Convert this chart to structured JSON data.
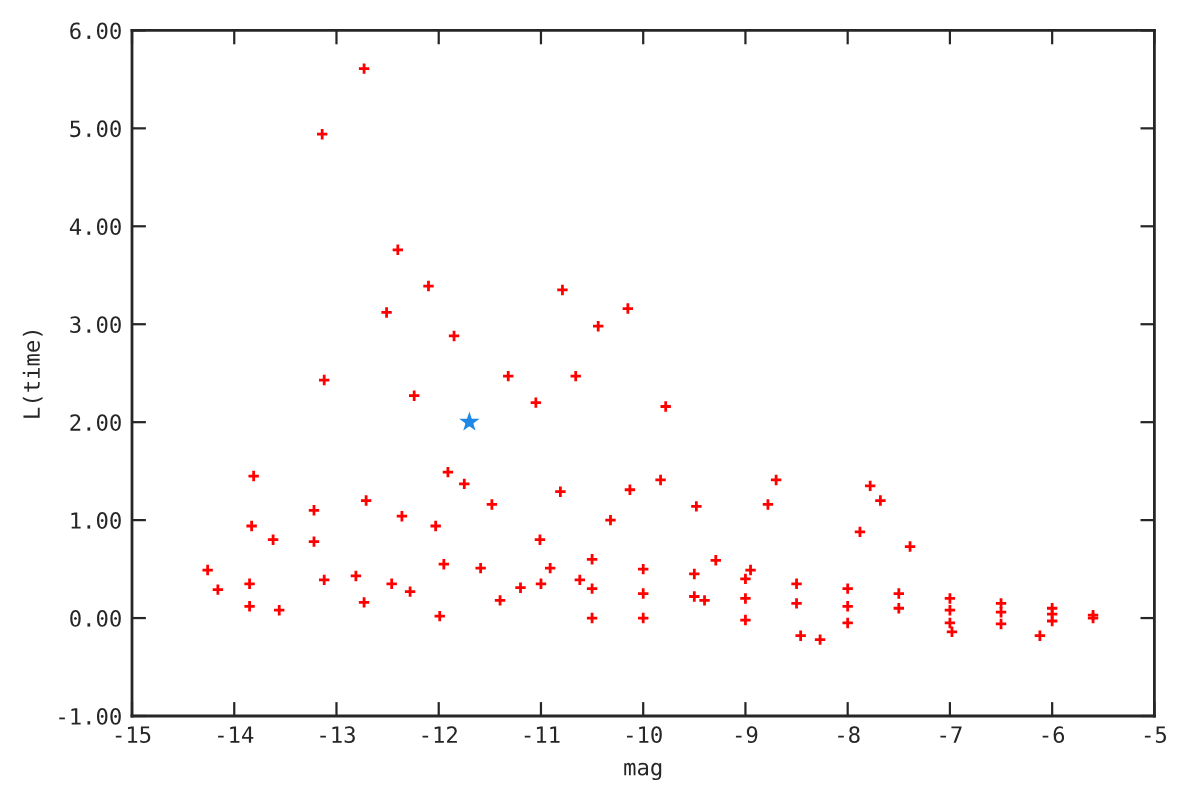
{
  "chart_data": {
    "type": "scatter",
    "xlabel": "mag",
    "ylabel": "L(time)",
    "xlim": [
      -15,
      -5
    ],
    "xticks": [
      -15,
      -14,
      -13,
      -12,
      -11,
      -10,
      -9,
      -8,
      -7,
      -6,
      -5
    ],
    "ylim": [
      -1,
      6
    ],
    "yticks": [
      {
        "value": -1,
        "label": "-1.00"
      },
      {
        "value": 0,
        "label": "0.00"
      },
      {
        "value": 1,
        "label": "1.00"
      },
      {
        "value": 2,
        "label": "2.00"
      },
      {
        "value": 3,
        "label": "3.00"
      },
      {
        "value": 4,
        "label": "4.00"
      },
      {
        "value": 5,
        "label": "5.00"
      },
      {
        "value": 6,
        "label": "6.00"
      }
    ],
    "grid": false,
    "series": [
      {
        "color": "#ff0000",
        "marker": "cross",
        "x": [
          -12.73,
          -13.14,
          -12.4,
          -12.51,
          -12.1,
          -11.85,
          -10.79,
          -10.44,
          -10.15,
          -10.66,
          -13.12,
          -11.32,
          -11.05,
          -12.24,
          -9.78,
          -13.81,
          -13.83,
          -14.26,
          -14.16,
          -13.85,
          -13.85,
          -13.56,
          -13.62,
          -13.22,
          -13.12,
          -12.81,
          -12.71,
          -13.22,
          -12.36,
          -12.73,
          -12.46,
          -12.28,
          -11.91,
          -12.03,
          -11.95,
          -11.75,
          -11.48,
          -11.99,
          -11.59,
          -11.4,
          -11.2,
          -10.91,
          -10.81,
          -11.01,
          -10.62,
          -10.32,
          -10.13,
          -9.83,
          -9.48,
          -9.29,
          -8.78,
          -8.7,
          -9.4,
          -8.95,
          -7.88,
          -7.78,
          -7.68,
          -7.39,
          -6.98,
          -6.12,
          -8.46,
          -8.27,
          -11.0,
          -10.5,
          -10.0,
          -9.5,
          -9.0,
          -8.5,
          -8.0,
          -7.5,
          -7.0,
          -6.5,
          -6.0,
          -5.6,
          -10.5,
          -10.0,
          -9.5,
          -9.0,
          -8.5,
          -8.0,
          -7.5,
          -7.0,
          -6.5,
          -6.0,
          -10.5,
          -10.0,
          -9.0,
          -8.0,
          -7.0,
          -6.5,
          -6.0,
          -5.6
        ],
        "values": [
          5.61,
          4.94,
          3.76,
          3.12,
          3.39,
          2.88,
          3.35,
          2.98,
          3.16,
          2.47,
          2.43,
          2.47,
          2.2,
          2.27,
          2.16,
          1.45,
          0.94,
          0.49,
          0.29,
          0.35,
          0.12,
          0.08,
          0.8,
          0.78,
          0.39,
          0.43,
          1.2,
          1.1,
          1.04,
          0.16,
          0.35,
          0.27,
          1.49,
          0.94,
          0.55,
          1.37,
          1.16,
          0.02,
          0.51,
          0.18,
          0.31,
          0.51,
          1.29,
          0.8,
          0.39,
          1.0,
          1.31,
          1.41,
          1.14,
          0.59,
          1.16,
          1.41,
          0.18,
          0.49,
          0.88,
          1.35,
          1.2,
          0.73,
          -0.14,
          -0.18,
          -0.18,
          -0.22,
          0.35,
          0.3,
          0.25,
          0.22,
          0.2,
          0.15,
          0.12,
          0.1,
          0.08,
          0.06,
          0.04,
          0.03,
          0.6,
          0.5,
          0.45,
          0.4,
          0.35,
          0.3,
          0.25,
          0.2,
          0.15,
          0.1,
          0.0,
          0.0,
          -0.02,
          -0.05,
          -0.05,
          -0.06,
          -0.03,
          0.0
        ]
      },
      {
        "color": "#1e88e5",
        "marker": "star",
        "x": [
          -11.7
        ],
        "values": [
          2.0
        ]
      }
    ]
  }
}
